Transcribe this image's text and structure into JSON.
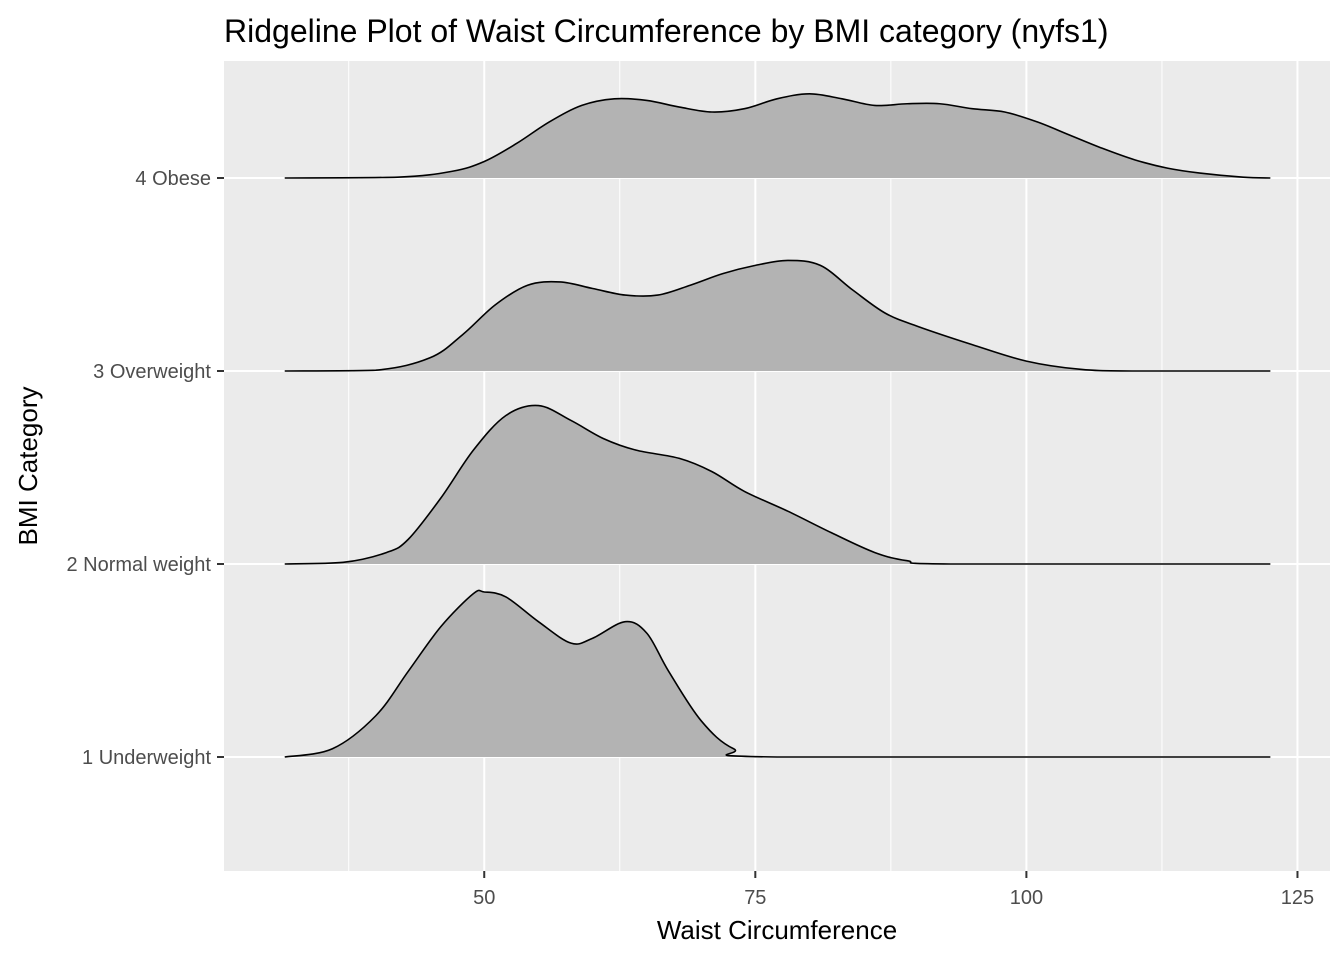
{
  "chart_data": {
    "type": "ridgeline",
    "title": "Ridgeline Plot of Waist Circumference by BMI category (nyfs1)",
    "xlabel": "Waist Circumference",
    "ylabel": "BMI Category",
    "xlim": [
      26,
      128
    ],
    "x_ticks": [
      50,
      75,
      100,
      125
    ],
    "x_tick_labels": [
      "50",
      "75",
      "100",
      "125"
    ],
    "grid": true,
    "legend": "none",
    "colors": {
      "panel_background": "#ebebeb",
      "grid_line": "#ffffff",
      "fill": "#b3b3b3",
      "outline": "#000000",
      "tick_label": "#4d4d4d"
    },
    "series": [
      {
        "name": "1 Underweight",
        "density_height": [
          [
            31.6,
            0
          ],
          [
            36,
            0.05
          ],
          [
            40,
            0.25
          ],
          [
            43,
            0.52
          ],
          [
            46,
            0.79
          ],
          [
            49,
            0.99
          ],
          [
            50,
            1.0
          ],
          [
            52,
            0.97
          ],
          [
            55,
            0.82
          ],
          [
            58,
            0.69
          ],
          [
            60,
            0.72
          ],
          [
            63,
            0.82
          ],
          [
            65,
            0.75
          ],
          [
            67,
            0.52
          ],
          [
            70,
            0.22
          ],
          [
            73,
            0.05
          ],
          [
            77,
            0
          ],
          [
            122.5,
            0
          ]
        ]
      },
      {
        "name": "2 Normal weight",
        "density_height": [
          [
            31.6,
            0
          ],
          [
            37,
            0.01
          ],
          [
            41,
            0.07
          ],
          [
            43,
            0.15
          ],
          [
            46,
            0.4
          ],
          [
            49,
            0.69
          ],
          [
            52,
            0.9
          ],
          [
            55,
            0.96
          ],
          [
            58,
            0.87
          ],
          [
            61,
            0.76
          ],
          [
            64,
            0.69
          ],
          [
            68,
            0.64
          ],
          [
            71,
            0.56
          ],
          [
            74,
            0.44
          ],
          [
            78,
            0.32
          ],
          [
            82,
            0.19
          ],
          [
            86,
            0.07
          ],
          [
            89,
            0.02
          ],
          [
            93,
            0
          ],
          [
            122.5,
            0
          ]
        ]
      },
      {
        "name": "3 Overweight",
        "density_height": [
          [
            31.6,
            0
          ],
          [
            40,
            0.005
          ],
          [
            45,
            0.08
          ],
          [
            48,
            0.22
          ],
          [
            51,
            0.4
          ],
          [
            54,
            0.52
          ],
          [
            57,
            0.54
          ],
          [
            60,
            0.5
          ],
          [
            63,
            0.46
          ],
          [
            66,
            0.46
          ],
          [
            69,
            0.52
          ],
          [
            72,
            0.59
          ],
          [
            75,
            0.64
          ],
          [
            78,
            0.67
          ],
          [
            81,
            0.64
          ],
          [
            84,
            0.49
          ],
          [
            87,
            0.35
          ],
          [
            90,
            0.27
          ],
          [
            95,
            0.16
          ],
          [
            100,
            0.06
          ],
          [
            105,
            0.01
          ],
          [
            110,
            0
          ],
          [
            122.5,
            0
          ]
        ]
      },
      {
        "name": "4 Obese",
        "density_height": [
          [
            31.6,
            0
          ],
          [
            42,
            0.005
          ],
          [
            47,
            0.04
          ],
          [
            50,
            0.1
          ],
          [
            53,
            0.21
          ],
          [
            56,
            0.34
          ],
          [
            59,
            0.44
          ],
          [
            62,
            0.48
          ],
          [
            65,
            0.47
          ],
          [
            68,
            0.43
          ],
          [
            71,
            0.4
          ],
          [
            74,
            0.42
          ],
          [
            77,
            0.48
          ],
          [
            80,
            0.51
          ],
          [
            83,
            0.48
          ],
          [
            86,
            0.44
          ],
          [
            89,
            0.45
          ],
          [
            92,
            0.45
          ],
          [
            95,
            0.42
          ],
          [
            98,
            0.4
          ],
          [
            101,
            0.34
          ],
          [
            104,
            0.26
          ],
          [
            107,
            0.18
          ],
          [
            110,
            0.11
          ],
          [
            113,
            0.06
          ],
          [
            116,
            0.03
          ],
          [
            120,
            0.005
          ],
          [
            122.5,
            0
          ]
        ]
      }
    ]
  }
}
